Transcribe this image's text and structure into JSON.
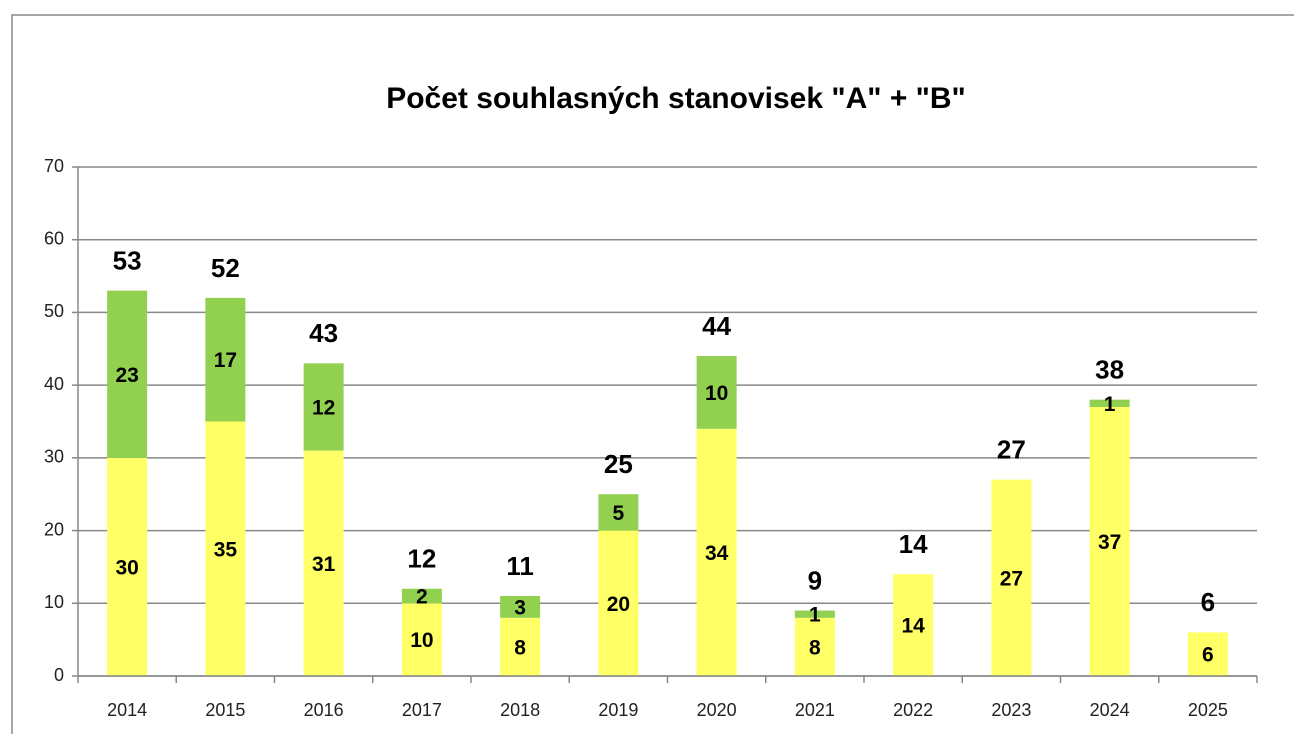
{
  "chart_data": {
    "type": "stacked_bar",
    "title": "Počet souhlasných stanovisek \"A\" + \"B\"",
    "categories": [
      "2014",
      "2015",
      "2016",
      "2017",
      "2018",
      "2019",
      "2020",
      "2021",
      "2022",
      "2023",
      "2024",
      "2025"
    ],
    "series": [
      {
        "color": "#ffff66",
        "values": [
          30,
          35,
          31,
          10,
          8,
          20,
          34,
          8,
          14,
          27,
          37,
          6
        ]
      },
      {
        "color": "#92d050",
        "values": [
          23,
          17,
          12,
          2,
          3,
          5,
          10,
          1,
          null,
          null,
          1,
          null
        ]
      }
    ],
    "totals": [
      53,
      52,
      43,
      12,
      11,
      25,
      44,
      9,
      14,
      27,
      38,
      6
    ],
    "ylim": [
      0,
      70
    ],
    "yticks": [
      0,
      10,
      20,
      30,
      40,
      50,
      60,
      70
    ],
    "grid": true
  }
}
